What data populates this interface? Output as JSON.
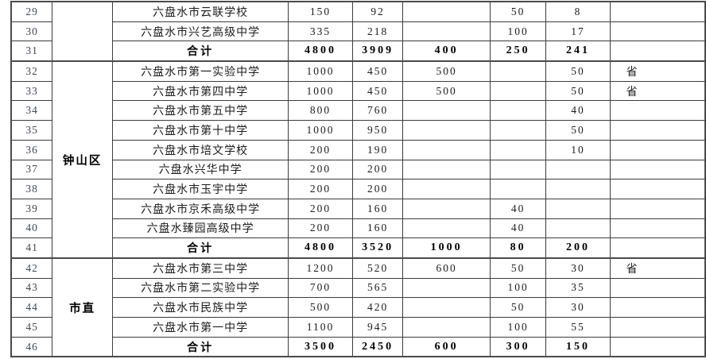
{
  "page": {
    "background": "#ffffff",
    "border_color": "#3c3c3c",
    "row_number_color": "#414b57"
  },
  "table": {
    "rows": [
      {
        "no": "29",
        "school": "六盘水市云联学校",
        "v1": "150",
        "v2": "92",
        "v3": "",
        "v4": "50",
        "v5": "8",
        "v6": "",
        "total": false,
        "group_start": false,
        "region": {
          "label": "",
          "span": 3
        }
      },
      {
        "no": "30",
        "school": "六盘水市兴艺高级中学",
        "v1": "335",
        "v2": "218",
        "v3": "",
        "v4": "100",
        "v5": "17",
        "v6": "",
        "total": false,
        "group_start": false
      },
      {
        "no": "31",
        "school": "合计",
        "v1": "4800",
        "v2": "3909",
        "v3": "400",
        "v4": "250",
        "v5": "241",
        "v6": "",
        "total": true,
        "group_start": false
      },
      {
        "no": "32",
        "school": "六盘水市第一实验中学",
        "v1": "1000",
        "v2": "450",
        "v3": "500",
        "v4": "",
        "v5": "50",
        "v6": "省",
        "total": false,
        "group_start": true,
        "region": {
          "label": "钟山区",
          "span": 10
        }
      },
      {
        "no": "33",
        "school": "六盘水市第四中学",
        "v1": "1000",
        "v2": "450",
        "v3": "500",
        "v4": "",
        "v5": "50",
        "v6": "省",
        "total": false,
        "group_start": false
      },
      {
        "no": "34",
        "school": "六盘水市第五中学",
        "v1": "800",
        "v2": "760",
        "v3": "",
        "v4": "",
        "v5": "40",
        "v6": "",
        "total": false,
        "group_start": false
      },
      {
        "no": "35",
        "school": "六盘水市第十中学",
        "v1": "1000",
        "v2": "950",
        "v3": "",
        "v4": "",
        "v5": "50",
        "v6": "",
        "total": false,
        "group_start": false
      },
      {
        "no": "36",
        "school": "六盘水市培文学校",
        "v1": "200",
        "v2": "190",
        "v3": "",
        "v4": "",
        "v5": "10",
        "v6": "",
        "total": false,
        "group_start": false
      },
      {
        "no": "37",
        "school": "六盘水兴华中学",
        "v1": "200",
        "v2": "200",
        "v3": "",
        "v4": "",
        "v5": "",
        "v6": "",
        "total": false,
        "group_start": false
      },
      {
        "no": "38",
        "school": "六盘水市玉宇中学",
        "v1": "200",
        "v2": "200",
        "v3": "",
        "v4": "",
        "v5": "",
        "v6": "",
        "total": false,
        "group_start": false
      },
      {
        "no": "39",
        "school": "六盘水市京禾高级中学",
        "v1": "200",
        "v2": "160",
        "v3": "",
        "v4": "40",
        "v5": "",
        "v6": "",
        "total": false,
        "group_start": false
      },
      {
        "no": "40",
        "school": "六盘水臻园高级中学",
        "v1": "200",
        "v2": "160",
        "v3": "",
        "v4": "40",
        "v5": "",
        "v6": "",
        "total": false,
        "group_start": false
      },
      {
        "no": "41",
        "school": "合计",
        "v1": "4800",
        "v2": "3520",
        "v3": "1000",
        "v4": "80",
        "v5": "200",
        "v6": "",
        "total": true,
        "group_start": false
      },
      {
        "no": "42",
        "school": "六盘水市第三中学",
        "v1": "1200",
        "v2": "520",
        "v3": "600",
        "v4": "50",
        "v5": "30",
        "v6": "省",
        "total": false,
        "group_start": true,
        "region": {
          "label": "市直",
          "span": 5
        }
      },
      {
        "no": "43",
        "school": "六盘水市第二实验中学",
        "v1": "700",
        "v2": "565",
        "v3": "",
        "v4": "100",
        "v5": "35",
        "v6": "",
        "total": false,
        "group_start": false
      },
      {
        "no": "44",
        "school": "六盘水市民族中学",
        "v1": "500",
        "v2": "420",
        "v3": "",
        "v4": "50",
        "v5": "30",
        "v6": "",
        "total": false,
        "group_start": false
      },
      {
        "no": "45",
        "school": "六盘水市第一中学",
        "v1": "1100",
        "v2": "945",
        "v3": "",
        "v4": "100",
        "v5": "55",
        "v6": "",
        "total": false,
        "group_start": false
      },
      {
        "no": "46",
        "school": "合计",
        "v1": "3500",
        "v2": "2450",
        "v3": "600",
        "v4": "300",
        "v5": "150",
        "v6": "",
        "total": true,
        "group_start": false
      }
    ]
  }
}
